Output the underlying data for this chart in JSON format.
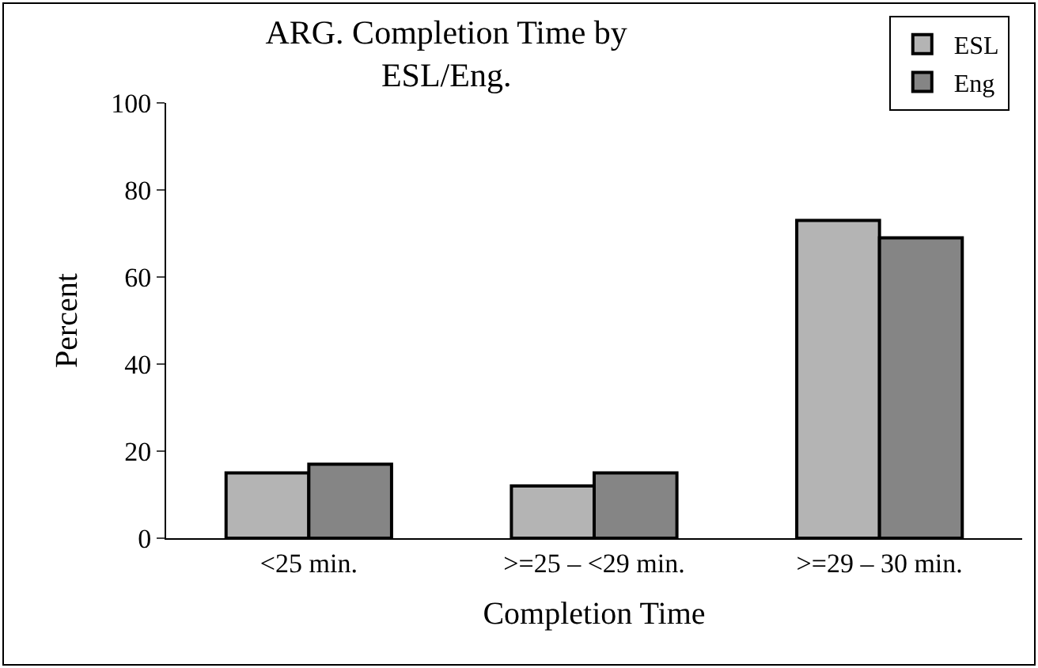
{
  "chart_data": {
    "type": "bar",
    "title": "ARG. Completion Time by ESL/Eng.",
    "xlabel": "Completion Time",
    "ylabel": "Percent",
    "categories": [
      "<25 min.",
      ">=25 – <29 min.",
      ">=29 – 30 min."
    ],
    "series": [
      {
        "name": "ESL",
        "color": "#b4b4b4",
        "values": [
          15,
          12,
          73
        ]
      },
      {
        "name": "Eng",
        "color": "#858585",
        "values": [
          17,
          15,
          69
        ]
      }
    ],
    "ylim": [
      0,
      100
    ],
    "yticks": [
      0,
      20,
      40,
      60,
      80,
      100
    ],
    "legend": "top right"
  }
}
